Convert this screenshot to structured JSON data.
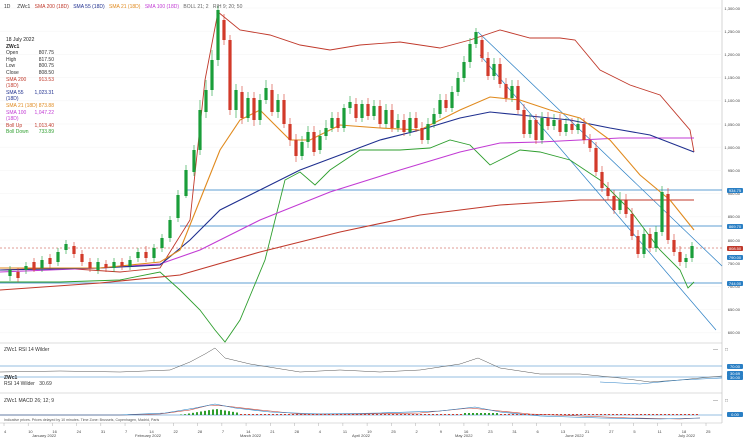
{
  "legend": {
    "timeframe": "1D",
    "symbol": "ZWc1",
    "indicators": [
      {
        "label": "SMA 200 (18D)",
        "color": "#c0392b"
      },
      {
        "label": "SMA 55 (18D)",
        "color": "#1f2f8f"
      },
      {
        "label": "SMA 21 (18D)",
        "color": "#e08a1e"
      },
      {
        "label": "SMA 100 (18D)",
        "color": "#c23bd4"
      },
      {
        "label": "BOLL 21; 2",
        "color": "#666666"
      },
      {
        "label": "RIH 9; 20; 50",
        "color": "#666666"
      }
    ]
  },
  "info": {
    "date": "18 July 2022",
    "symbol": "ZWc1",
    "rows": [
      {
        "label": "Open",
        "value": "807.75",
        "color": "#333333"
      },
      {
        "label": "High",
        "value": "817.50",
        "color": "#333333"
      },
      {
        "label": "Low",
        "value": "800.75",
        "color": "#333333"
      },
      {
        "label": "Close",
        "value": "808.50",
        "color": "#333333"
      },
      {
        "label": "SMA 200 (18D)",
        "value": "913.53",
        "color": "#c0392b"
      },
      {
        "label": "SMA 55 (18D)",
        "value": "1,023.31",
        "color": "#1f2f8f"
      },
      {
        "label": "SMA 21 (18D)",
        "value": "873.88",
        "color": "#e08a1e"
      },
      {
        "label": "SMA 100 (18D)",
        "value": "1,047.22",
        "color": "#c23bd4"
      },
      {
        "label": "Boll Up",
        "value": "1,013.40",
        "color": "#c0392b"
      },
      {
        "label": "Boll Down",
        "value": "733.89",
        "color": "#2e9e2e"
      }
    ]
  },
  "yaxis": [
    "1,300.00",
    "1,250.00",
    "1,200.00",
    "1,150.00",
    "1,100.00",
    "1,050.00",
    "1,000.00",
    "950.00",
    "900.00",
    "850.00",
    "800.00",
    "750.00",
    "700.00",
    "650.00",
    "600.00"
  ],
  "price_tags": [
    {
      "value": "934.75",
      "color": "#2a7fc4"
    },
    {
      "value": "869.70",
      "color": "#2a7fc4"
    },
    {
      "value": "808.50",
      "color": "#c0392b"
    },
    {
      "value": "790.00",
      "color": "#2a7fc4"
    },
    {
      "value": "744.00",
      "color": "#2a7fc4"
    }
  ],
  "xaxis": {
    "days": [
      "4",
      "10",
      "16",
      "24",
      "31",
      "7",
      "14",
      "22",
      "28",
      "7",
      "14",
      "21",
      "28",
      "4",
      "11",
      "19",
      "25",
      "2",
      "9",
      "16",
      "23",
      "31",
      "6",
      "13",
      "21",
      "27",
      "5",
      "11",
      "18",
      "25"
    ],
    "months": [
      "January 2022",
      "February 2022",
      "March 2022",
      "April 2022",
      "May 2022",
      "June 2022",
      "July 2022"
    ]
  },
  "rsi": {
    "title": "ZWc1  RSI 14 Wilder",
    "sublabel": "RSI 14 Wilder",
    "value": "30.69",
    "tags": [
      {
        "value": "70.00",
        "color": "#2a7fc4"
      },
      {
        "value": "30.69",
        "color": "#2a7fc4"
      },
      {
        "value": "30.00",
        "color": "#2a7fc4"
      }
    ]
  },
  "macd": {
    "title": "ZWc1  MACD 26; 12; 9",
    "tags": [
      {
        "value": "0.00",
        "color": "#2a7fc4"
      }
    ]
  },
  "footer": "Indicative prices. Prices delayed by 10 minutes.  Time Zone: Brussels, Copenhagen, Madrid, Paris",
  "buttons": {
    "collapse": "—",
    "expand": "□"
  }
}
